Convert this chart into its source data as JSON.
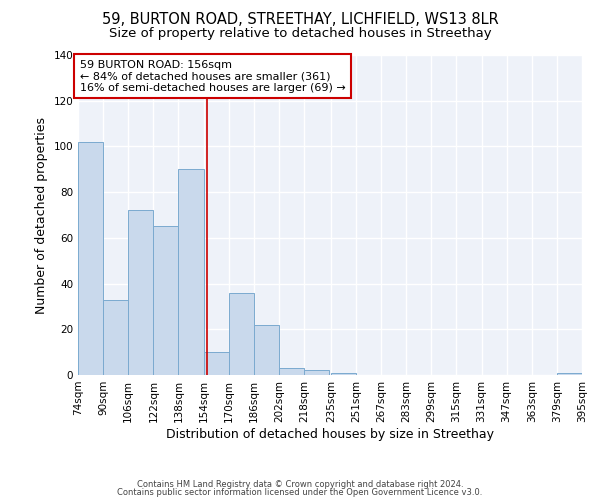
{
  "title1": "59, BURTON ROAD, STREETHAY, LICHFIELD, WS13 8LR",
  "title2": "Size of property relative to detached houses in Streethay",
  "xlabel": "Distribution of detached houses by size in Streethay",
  "ylabel": "Number of detached properties",
  "annotation_line1": "59 BURTON ROAD: 156sqm",
  "annotation_line2": "← 84% of detached houses are smaller (361)",
  "annotation_line3": "16% of semi-detached houses are larger (69) →",
  "bar_color": "#c9d9ec",
  "bar_edge_color": "#7baacf",
  "vline_color": "#cc0000",
  "vline_x": 156,
  "annotation_box_edge": "#cc0000",
  "bin_edges": [
    74,
    90,
    106,
    122,
    138,
    154,
    170,
    186,
    202,
    218,
    235,
    251,
    267,
    283,
    299,
    315,
    331,
    347,
    363,
    379,
    395
  ],
  "bin_labels": [
    "74sqm",
    "90sqm",
    "106sqm",
    "122sqm",
    "138sqm",
    "154sqm",
    "170sqm",
    "186sqm",
    "202sqm",
    "218sqm",
    "235sqm",
    "251sqm",
    "267sqm",
    "283sqm",
    "299sqm",
    "315sqm",
    "331sqm",
    "347sqm",
    "363sqm",
    "379sqm",
    "395sqm"
  ],
  "bar_heights": [
    102,
    33,
    72,
    65,
    90,
    10,
    36,
    22,
    3,
    2,
    1,
    0,
    0,
    0,
    0,
    0,
    0,
    0,
    0,
    1,
    0
  ],
  "ylim": [
    0,
    140
  ],
  "yticks": [
    0,
    20,
    40,
    60,
    80,
    100,
    120,
    140
  ],
  "footer1": "Contains HM Land Registry data © Crown copyright and database right 2024.",
  "footer2": "Contains public sector information licensed under the Open Government Licence v3.0.",
  "bg_color": "#eef2f9",
  "title_fontsize": 10.5,
  "subtitle_fontsize": 9.5,
  "axis_label_fontsize": 9,
  "tick_fontsize": 7.5,
  "footer_fontsize": 6,
  "annotation_fontsize": 8
}
